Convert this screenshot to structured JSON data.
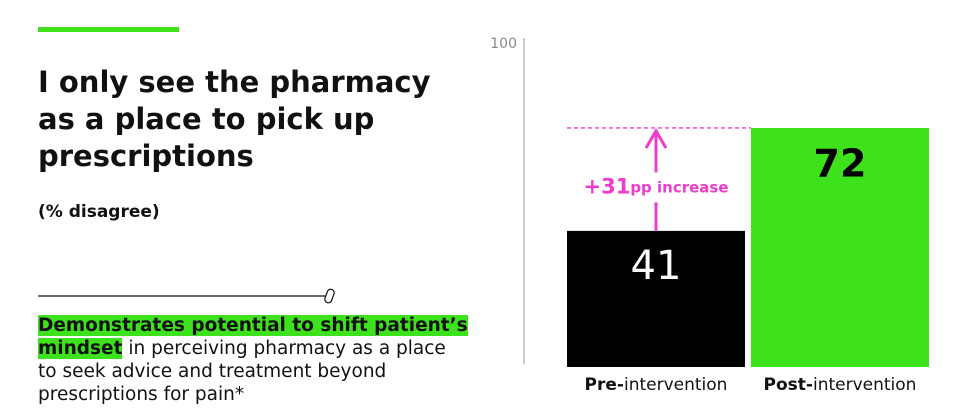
{
  "chart_data": {
    "type": "bar",
    "title": "I only see the pharmacy as a place to pick up prescriptions",
    "subtitle": "(% disagree)",
    "takeaway": {
      "highlight": "Demonstrates potential to shift patient’s mindset",
      "text": "in perceiving pharmacy as a place to seek advice and treatment beyond prescriptions for pain*"
    },
    "categories": [
      "Pre-intervention",
      "Post-intervention"
    ],
    "values": [
      41,
      72
    ],
    "colors": [
      "#000000",
      "#3ee21c"
    ],
    "value_label_colors": [
      "#ffffff",
      "#000000"
    ],
    "ylim": [
      0,
      100
    ],
    "yticks": [
      100
    ],
    "annotation": "+31pp increase",
    "annotation_color": "#f03ccd"
  }
}
